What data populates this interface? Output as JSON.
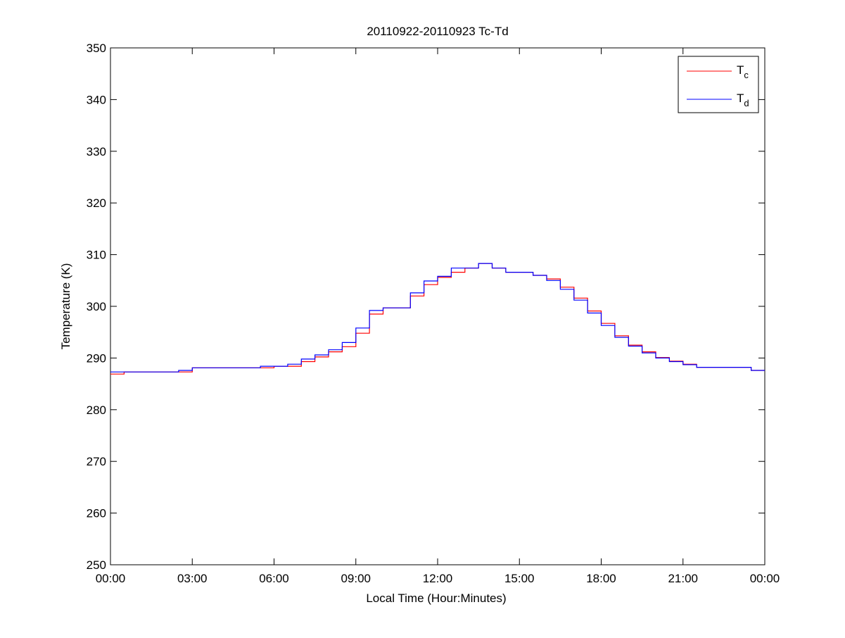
{
  "chart_data": {
    "type": "line",
    "title": "20110922-20110923 Tc-Td",
    "xlabel": "Local Time (Hour:Minutes)",
    "ylabel": "Temperature (K)",
    "ylim": [
      250,
      350
    ],
    "yticks": [
      250,
      260,
      270,
      280,
      290,
      300,
      310,
      320,
      330,
      340,
      350
    ],
    "xticks": [
      "00:00",
      "03:00",
      "06:00",
      "09:00",
      "12:00",
      "15:00",
      "18:00",
      "21:00",
      "00:00"
    ],
    "xlim_hours": [
      0,
      24
    ],
    "grid": false,
    "legend_position": "top-right",
    "x_hours": [
      0,
      0.5,
      1,
      1.5,
      2,
      2.5,
      3,
      3.5,
      4,
      4.5,
      5,
      5.5,
      6,
      6.5,
      7,
      7.5,
      8,
      8.5,
      9,
      9.5,
      10,
      10.5,
      11,
      11.5,
      12,
      12.5,
      13,
      13.5,
      14,
      14.5,
      15,
      15.5,
      16,
      16.5,
      17,
      17.5,
      18,
      18.5,
      19,
      19.5,
      20,
      20.5,
      21,
      21.5,
      22,
      22.5,
      23,
      23.5,
      24
    ],
    "series": [
      {
        "name": "T",
        "subscript": "c",
        "color": "#ff0000",
        "values": [
          286.9,
          287.3,
          287.3,
          287.3,
          287.3,
          287.3,
          288.1,
          288.1,
          288.1,
          288.1,
          288.1,
          288.1,
          288.4,
          288.4,
          289.3,
          290.2,
          291.2,
          292.2,
          294.8,
          298.5,
          299.7,
          299.7,
          302.0,
          304.2,
          305.6,
          306.6,
          307.4,
          308.3,
          307.4,
          306.6,
          306.6,
          306.0,
          305.3,
          303.7,
          301.6,
          299.1,
          296.7,
          294.3,
          292.5,
          291.2,
          290.1,
          289.4,
          288.8,
          288.2,
          288.2,
          288.2,
          288.2,
          287.6,
          287.6
        ]
      },
      {
        "name": "T",
        "subscript": "d",
        "color": "#0000ff",
        "values": [
          287.3,
          287.3,
          287.3,
          287.3,
          287.3,
          287.6,
          288.1,
          288.1,
          288.1,
          288.1,
          288.1,
          288.4,
          288.4,
          288.8,
          289.8,
          290.6,
          291.6,
          293.0,
          295.8,
          299.2,
          299.7,
          299.7,
          302.6,
          304.9,
          305.8,
          307.4,
          307.4,
          308.3,
          307.4,
          306.6,
          306.6,
          306.0,
          305.0,
          303.3,
          301.2,
          298.7,
          296.3,
          294.0,
          292.3,
          291.0,
          290.0,
          289.3,
          288.7,
          288.2,
          288.2,
          288.2,
          288.2,
          287.6,
          287.6
        ]
      }
    ]
  }
}
